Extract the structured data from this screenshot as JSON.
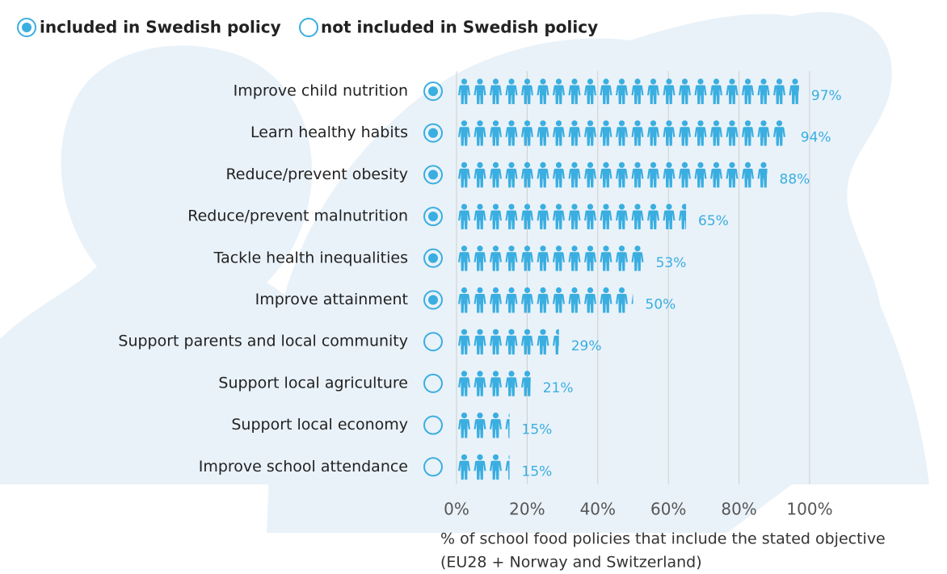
{
  "chart_data": {
    "type": "pictogram",
    "legend": {
      "included": "included in Swedish policy",
      "not_included": "not included in Swedish policy"
    },
    "categories": [
      "Improve child nutrition",
      "Learn healthy habits",
      "Reduce/prevent obesity",
      "Reduce/prevent malnutrition",
      "Tackle health inequalities",
      "Improve attainment",
      "Support parents and local community",
      "Support local agriculture",
      "Support local economy",
      "Improve school attendance"
    ],
    "included": [
      true,
      true,
      true,
      true,
      true,
      true,
      false,
      false,
      false,
      false
    ],
    "values": [
      97,
      94,
      88,
      65,
      53,
      50,
      29,
      21,
      15,
      15
    ],
    "value_labels": [
      "97%",
      "94%",
      "88%",
      "65%",
      "53%",
      "50%",
      "29%",
      "21%",
      "15%",
      "15%"
    ],
    "color": "#3aaee0",
    "xlim": [
      0,
      100
    ],
    "xticks": [
      {
        "value": 0,
        "label": "0%"
      },
      {
        "value": 20,
        "label": "20%"
      },
      {
        "value": 40,
        "label": "40%"
      },
      {
        "value": 60,
        "label": "60%"
      },
      {
        "value": 80,
        "label": "80%"
      },
      {
        "value": 100,
        "label": "100%"
      }
    ],
    "grid": true,
    "xlabel": "% of school food policies that include the stated objective",
    "xlabel_note": "(EU28 + Norway and Switzerland)"
  }
}
